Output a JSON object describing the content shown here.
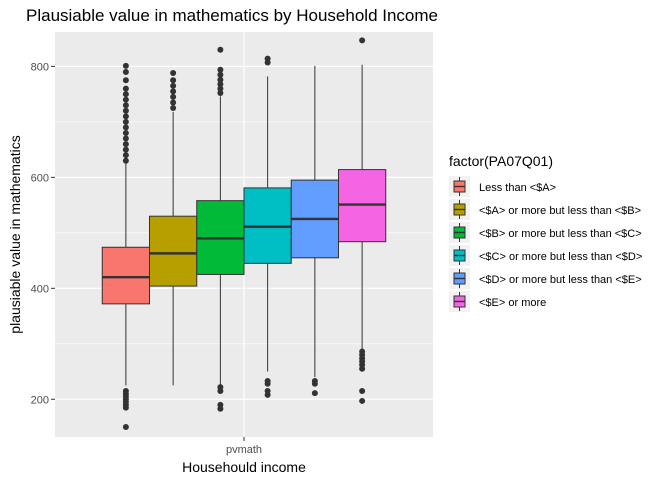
{
  "chart_data": {
    "type": "boxplot",
    "title": "Plausiable value in mathematics by Household Income",
    "xlabel": "Househould income",
    "ylabel": "plausiable value in mathematics",
    "categories": [
      "pvmath"
    ],
    "ylim": [
      132,
      862
    ],
    "yticks": [
      200,
      400,
      600,
      800
    ],
    "grid": true,
    "legend": {
      "title": "factor(PA07Q01)",
      "position": "right"
    },
    "series": [
      {
        "name": "Less than <$A>",
        "color": "#F8766D",
        "min": 225,
        "q1": 372,
        "median": 420,
        "q3": 474,
        "max": 625,
        "outliers": [
          150,
          185,
          190,
          195,
          200,
          205,
          210,
          215,
          630,
          640,
          650,
          660,
          670,
          680,
          690,
          700,
          710,
          720,
          730,
          740,
          750,
          760,
          775,
          790,
          801
        ]
      },
      {
        "name": "<$A> or more but less than <$B>",
        "color": "#B79F00",
        "min": 225,
        "q1": 404,
        "median": 463,
        "q3": 530,
        "max": 718,
        "outliers": [
          725,
          735,
          745,
          755,
          765,
          775,
          788
        ]
      },
      {
        "name": "<$B> or more but less than <$C>",
        "color": "#00BA38",
        "min": 225,
        "q1": 425,
        "median": 490,
        "q3": 558,
        "max": 746,
        "outliers": [
          183,
          190,
          215,
          222,
          752,
          760,
          768,
          776,
          785,
          794,
          830
        ]
      },
      {
        "name": "<$C> or more but less than <$D>",
        "color": "#00BFC4",
        "min": 250,
        "q1": 445,
        "median": 511,
        "q3": 581,
        "max": 782,
        "outliers": [
          208,
          215,
          228,
          233,
          807,
          814
        ]
      },
      {
        "name": "<$D> or more but less than <$E>",
        "color": "#619CFF",
        "min": 240,
        "q1": 455,
        "median": 525,
        "q3": 595,
        "max": 801,
        "outliers": [
          211,
          228,
          233
        ]
      },
      {
        "name": "<$E> or more",
        "color": "#F564E3",
        "min": 290,
        "q1": 484,
        "median": 551,
        "q3": 614,
        "max": 803,
        "outliers": [
          197,
          215,
          255,
          262,
          268,
          274,
          280,
          286,
          847
        ]
      }
    ]
  }
}
